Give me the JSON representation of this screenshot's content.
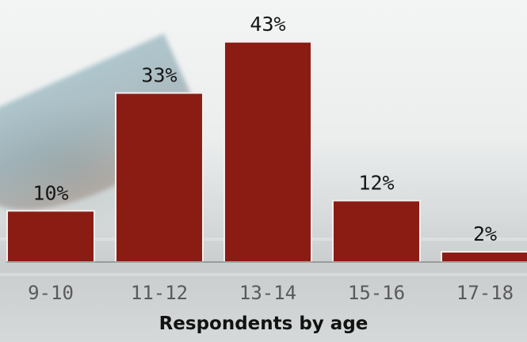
{
  "chart_data": {
    "type": "bar",
    "title": "Respondents by age",
    "categories": [
      "9-10",
      "11-12",
      "13-14",
      "15-16",
      "17-18"
    ],
    "values": [
      10,
      33,
      43,
      12,
      2
    ],
    "labels": [
      "10%",
      "33%",
      "43%",
      "12%",
      "2%"
    ],
    "unit": "%",
    "ylim": [
      0,
      45
    ],
    "grid": false,
    "legend": "none",
    "colors": {
      "bar": "#8b1c14",
      "bar_stroke": "#f4eeee"
    }
  }
}
